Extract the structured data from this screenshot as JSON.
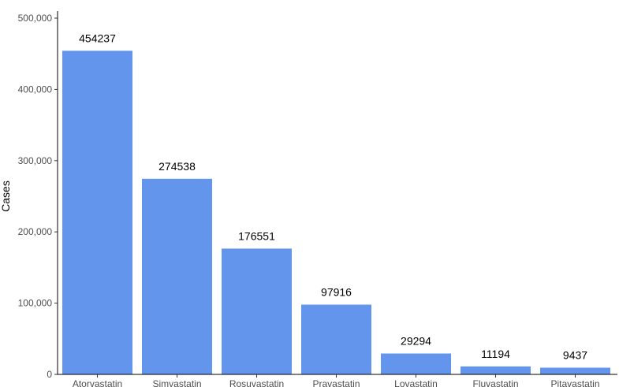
{
  "chart_data": {
    "type": "bar",
    "title": "",
    "xlabel": "",
    "ylabel": "Cases",
    "categories": [
      "Atorvastatin",
      "Simvastatin",
      "Rosuvastatin",
      "Pravastatin",
      "Lovastatin",
      "Fluvastatin",
      "Pitavastatin"
    ],
    "values": [
      454237,
      274538,
      176551,
      97916,
      29294,
      11194,
      9437
    ],
    "data_labels": [
      "454237",
      "274538",
      "176551",
      "97916",
      "29294",
      "11194",
      "9437"
    ],
    "ylim": [
      0,
      500000
    ],
    "yticks": [
      0,
      100000,
      200000,
      300000,
      400000,
      500000
    ],
    "ytick_labels": [
      "0",
      "100,000",
      "200,000",
      "300,000",
      "400,000",
      "500,000"
    ],
    "grid": false,
    "legend": "none",
    "bar_color": "#6495ED"
  }
}
